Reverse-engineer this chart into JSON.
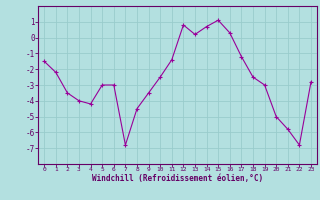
{
  "x": [
    0,
    1,
    2,
    3,
    4,
    5,
    6,
    7,
    8,
    9,
    10,
    11,
    12,
    13,
    14,
    15,
    16,
    17,
    18,
    19,
    20,
    21,
    22,
    23
  ],
  "y": [
    -1.5,
    -2.2,
    -3.5,
    -4.0,
    -4.2,
    -3.0,
    -3.0,
    -6.8,
    -4.5,
    -3.5,
    -2.5,
    -1.4,
    0.8,
    0.2,
    0.7,
    1.1,
    0.3,
    -1.2,
    -2.5,
    -3.0,
    -5.0,
    -5.8,
    -6.8,
    -2.8
  ],
  "line_color": "#990099",
  "marker": "+",
  "bg_color": "#b3e0e0",
  "grid_color": "#99cccc",
  "axis_color": "#660066",
  "xlabel": "Windchill (Refroidissement éolien,°C)",
  "xlabel_color": "#660066",
  "tick_color": "#660066",
  "ylim": [
    -8,
    2
  ],
  "xlim": [
    -0.5,
    23.5
  ],
  "yticks": [
    1,
    0,
    -1,
    -2,
    -3,
    -4,
    -5,
    -6,
    -7
  ],
  "xticks": [
    0,
    1,
    2,
    3,
    4,
    5,
    6,
    7,
    8,
    9,
    10,
    11,
    12,
    13,
    14,
    15,
    16,
    17,
    18,
    19,
    20,
    21,
    22,
    23
  ],
  "figsize": [
    3.2,
    2.0
  ],
  "dpi": 100
}
